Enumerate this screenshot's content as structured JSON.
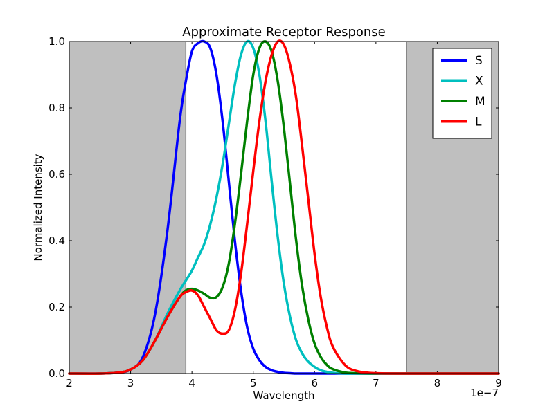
{
  "chart_data": {
    "type": "line",
    "title": "Approximate Receptor Response",
    "xlabel": "Wavelength",
    "ylabel": "Normalized Intensity",
    "x_offset_label": "1e−7",
    "xlim": [
      2,
      9
    ],
    "ylim": [
      0.0,
      1.0
    ],
    "x_ticks": [
      "2",
      "3",
      "4",
      "5",
      "6",
      "7",
      "8",
      "9"
    ],
    "y_ticks": [
      "0.0",
      "0.2",
      "0.4",
      "0.6",
      "0.8",
      "1.0"
    ],
    "grid": false,
    "legend_position": "top-right",
    "shaded_regions": [
      {
        "x_start": 2.0,
        "x_end": 3.9,
        "color": "#bfbfbf"
      },
      {
        "x_start": 7.5,
        "x_end": 9.0,
        "color": "#bfbfbf"
      }
    ],
    "x": [
      2.0,
      2.5,
      2.8,
      3.0,
      3.2,
      3.4,
      3.6,
      3.8,
      3.9,
      4.0,
      4.1,
      4.2,
      4.3,
      4.4,
      4.5,
      4.6,
      4.7,
      4.8,
      4.9,
      5.0,
      5.1,
      5.2,
      5.3,
      5.4,
      5.5,
      5.6,
      5.7,
      5.8,
      5.9,
      6.0,
      6.1,
      6.2,
      6.3,
      6.5,
      6.7,
      7.0,
      7.5,
      8.0,
      9.0
    ],
    "series": [
      {
        "name": "S",
        "color": "#0000ff",
        "values": [
          0.0,
          0.0,
          0.003,
          0.012,
          0.05,
          0.18,
          0.43,
          0.76,
          0.88,
          0.97,
          0.995,
          1.0,
          0.98,
          0.9,
          0.76,
          0.58,
          0.4,
          0.25,
          0.14,
          0.075,
          0.04,
          0.02,
          0.01,
          0.005,
          0.002,
          0.001,
          0.0,
          0.0,
          0.0,
          0.0,
          0.0,
          0.0,
          0.0,
          0.0,
          0.0,
          0.0,
          0.0,
          0.0,
          0.0
        ]
      },
      {
        "name": "X",
        "color": "#00bfbf",
        "values": [
          0.0,
          0.0,
          0.003,
          0.012,
          0.04,
          0.1,
          0.18,
          0.25,
          0.28,
          0.31,
          0.35,
          0.39,
          0.45,
          0.53,
          0.63,
          0.75,
          0.87,
          0.96,
          1.0,
          0.98,
          0.9,
          0.76,
          0.58,
          0.41,
          0.27,
          0.17,
          0.1,
          0.06,
          0.035,
          0.02,
          0.01,
          0.005,
          0.002,
          0.0,
          0.0,
          0.0,
          0.0,
          0.0,
          0.0
        ]
      },
      {
        "name": "M",
        "color": "#008000",
        "values": [
          0.0,
          0.0,
          0.003,
          0.012,
          0.04,
          0.1,
          0.17,
          0.23,
          0.25,
          0.255,
          0.25,
          0.24,
          0.228,
          0.23,
          0.26,
          0.33,
          0.45,
          0.6,
          0.76,
          0.9,
          0.98,
          1.0,
          0.97,
          0.88,
          0.74,
          0.57,
          0.4,
          0.26,
          0.16,
          0.09,
          0.05,
          0.026,
          0.013,
          0.003,
          0.001,
          0.0,
          0.0,
          0.0,
          0.0
        ]
      },
      {
        "name": "L",
        "color": "#ff0000",
        "values": [
          0.0,
          0.0,
          0.003,
          0.012,
          0.04,
          0.1,
          0.17,
          0.23,
          0.245,
          0.25,
          0.235,
          0.2,
          0.165,
          0.13,
          0.12,
          0.13,
          0.19,
          0.3,
          0.45,
          0.61,
          0.76,
          0.88,
          0.96,
          1.0,
          0.99,
          0.93,
          0.83,
          0.68,
          0.52,
          0.36,
          0.23,
          0.14,
          0.08,
          0.025,
          0.007,
          0.001,
          0.0,
          0.0,
          0.0
        ]
      }
    ]
  }
}
